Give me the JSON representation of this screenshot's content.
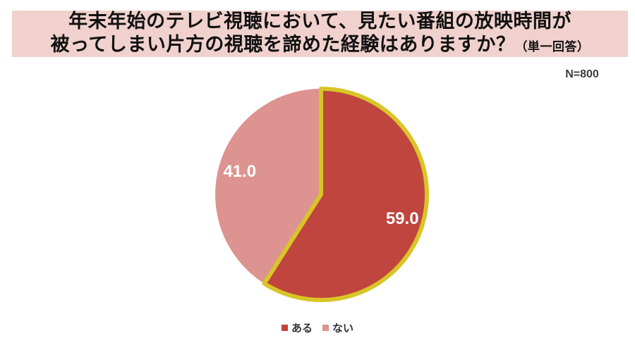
{
  "header": {
    "title_line1": "年末年始のテレビ視聴において、見たい番組の放映時間が",
    "title_line2": "被ってしまい片方の視聴を諦めた経験はありますか？",
    "title_suffix": "（単一回答）",
    "sample_label": "N=800",
    "banner_bg": "#f0d1cd"
  },
  "chart_data": {
    "type": "pie",
    "title": "年末年始のテレビ視聴において、見たい番組の放映時間が被ってしまい片方の視聴を諦めた経験はありますか？（単一回答）",
    "sample_size": "N=800",
    "labels": [
      "ある",
      "ない"
    ],
    "values": [
      59.0,
      41.0
    ],
    "data_labels": [
      "59.0",
      "41.0"
    ],
    "colors": [
      "#c0453e",
      "#dd938f"
    ],
    "data_label_color": "#ffffff",
    "highlight": {
      "slice": "ある",
      "stroke_color": "#d8c527",
      "stroke_width": 6
    },
    "start_angle_deg": 0,
    "direction": "clockwise",
    "legend_position": "bottom",
    "legend_text_color": "#333333",
    "background": "#ffffff"
  }
}
